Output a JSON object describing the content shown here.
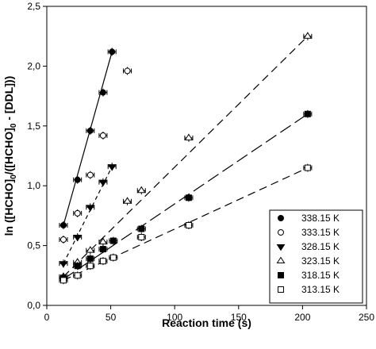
{
  "chart_data": {
    "type": "scatter",
    "xlabel": "Reaction time (s)",
    "ylabel_parts": [
      "ln ([HCHO]",
      "0",
      "/([HCHO]",
      "0",
      " - [DDL]))"
    ],
    "xlim": [
      0,
      250
    ],
    "ylim": [
      0,
      2.5
    ],
    "x_ticks": [
      0,
      50,
      100,
      150,
      200,
      250
    ],
    "y_ticks": [
      0,
      0.5,
      1.0,
      1.5,
      2.0,
      2.5
    ],
    "y_tick_labels": [
      "0,0",
      "0,5",
      "1,0",
      "1,5",
      "2,0",
      "2,5"
    ],
    "legend_position": "bottom-right",
    "grid": false,
    "series": [
      {
        "name": "338.15 K",
        "marker": "filled-circle",
        "line": "solid",
        "x": [
          13,
          24,
          34,
          44,
          51
        ],
        "y": [
          0.67,
          1.05,
          1.46,
          1.78,
          2.12
        ],
        "fit": [
          [
            13,
            0.67
          ],
          [
            51,
            2.12
          ]
        ]
      },
      {
        "name": "333.15 K",
        "marker": "open-circle",
        "line": "none",
        "x": [
          13,
          24,
          34,
          44,
          63
        ],
        "y": [
          0.55,
          0.77,
          1.09,
          1.42,
          1.96
        ],
        "fit": null
      },
      {
        "name": "328.15 K",
        "marker": "filled-triangle-down",
        "line": "short-dash",
        "x": [
          13,
          24,
          34,
          44,
          51
        ],
        "y": [
          0.35,
          0.57,
          0.82,
          1.03,
          1.16
        ],
        "fit": [
          [
            13,
            0.35
          ],
          [
            51,
            1.16
          ]
        ]
      },
      {
        "name": "323.15 K",
        "marker": "open-triangle-up",
        "line": "dash",
        "x": [
          13,
          24,
          34,
          44,
          63,
          74,
          111,
          204
        ],
        "y": [
          0.24,
          0.36,
          0.46,
          0.53,
          0.87,
          0.96,
          1.4,
          2.25
        ],
        "fit": [
          [
            13,
            0.24
          ],
          [
            204,
            2.25
          ]
        ]
      },
      {
        "name": "318.15 K",
        "marker": "filled-square",
        "line": "long-dash",
        "x": [
          13,
          24,
          34,
          44,
          52,
          74,
          111,
          204
        ],
        "y": [
          0.23,
          0.33,
          0.39,
          0.47,
          0.54,
          0.64,
          0.9,
          1.6
        ],
        "fit": [
          [
            13,
            0.22
          ],
          [
            204,
            1.6
          ]
        ]
      },
      {
        "name": "313.15 K",
        "marker": "open-square",
        "line": "dash",
        "x": [
          13,
          24,
          34,
          44,
          52,
          74,
          111,
          204
        ],
        "y": [
          0.21,
          0.25,
          0.33,
          0.37,
          0.4,
          0.57,
          0.67,
          1.15
        ],
        "fit": [
          [
            13,
            0.21
          ],
          [
            204,
            1.15
          ]
        ]
      }
    ]
  }
}
